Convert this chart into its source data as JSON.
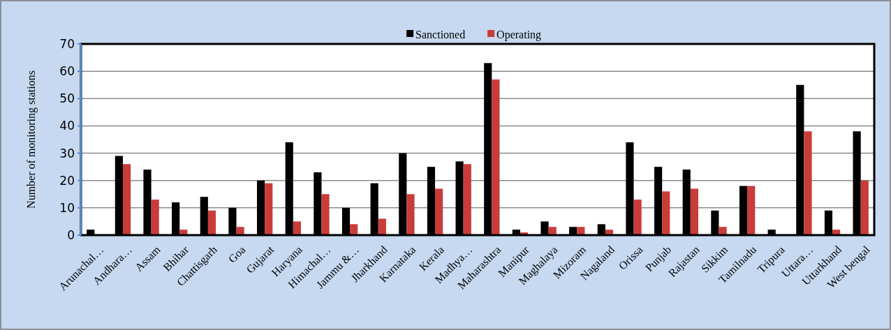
{
  "chart_data": {
    "type": "bar",
    "ylabel": "Number of monitoring stations",
    "categories": [
      "Arunachal…",
      "Andhara…",
      "Assam",
      "Bhihar",
      "Chattisgarh",
      "Goa",
      "Gujarat",
      "Haryana",
      "Himachal…",
      "Jammu &…",
      "Jharkhand",
      "Karnataka",
      "Kerala",
      "Madhya…",
      "Maharashtra",
      "Manipur",
      "Maghalaya",
      "Mizoram",
      "Nagaland",
      "Orissa",
      "Punjab",
      "Rajastan",
      "Sikkim",
      "Tamilnadu",
      "Tripura",
      "Uttara…",
      "Uttarkhand",
      "West bengal"
    ],
    "series": [
      {
        "name": "Sanctioned",
        "color": "#000000",
        "values": [
          2,
          29,
          24,
          12,
          14,
          10,
          20,
          34,
          23,
          10,
          19,
          30,
          25,
          27,
          63,
          2,
          5,
          3,
          4,
          34,
          25,
          24,
          9,
          18,
          2,
          55,
          9,
          38
        ]
      },
      {
        "name": "Operating",
        "color": "#c83c3a",
        "values": [
          0,
          26,
          13,
          2,
          9,
          3,
          19,
          5,
          15,
          4,
          6,
          15,
          17,
          26,
          57,
          1,
          3,
          3,
          2,
          13,
          16,
          17,
          3,
          18,
          0,
          38,
          2,
          20
        ]
      }
    ],
    "ylim": [
      0,
      70
    ],
    "yticks": [
      0,
      10,
      20,
      30,
      40,
      50,
      60,
      70
    ],
    "grid": "y",
    "legend": "top"
  }
}
